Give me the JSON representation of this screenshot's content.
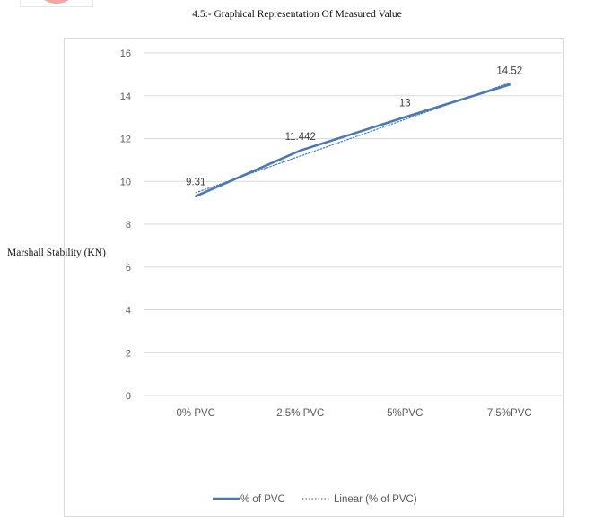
{
  "caption": "4.5:- Graphical Representation Of Measured Value",
  "chart_data": {
    "type": "line",
    "title": "",
    "xlabel": "",
    "ylabel": "Marshall Stability (KN)",
    "categories": [
      "0% PVC",
      "2.5% PVC",
      "5%PVC",
      "7.5%PVC"
    ],
    "ylim": [
      0,
      16
    ],
    "yticks": [
      0,
      2,
      4,
      6,
      8,
      10,
      12,
      14,
      16
    ],
    "grid": true,
    "legend_position": "bottom",
    "series": [
      {
        "name": "% of PVC",
        "values": [
          9.31,
          11.442,
          13,
          14.52
        ],
        "data_labels": [
          "9.31",
          "11.442",
          "13",
          "14.52"
        ],
        "color": "#4a78b5",
        "style": "solid"
      },
      {
        "name": "Linear (% of PVC)",
        "kind": "linear-trendline",
        "values": [
          9.475,
          11.184,
          12.893,
          14.601
        ],
        "color": "#4a78b5",
        "style": "dotted"
      }
    ]
  }
}
